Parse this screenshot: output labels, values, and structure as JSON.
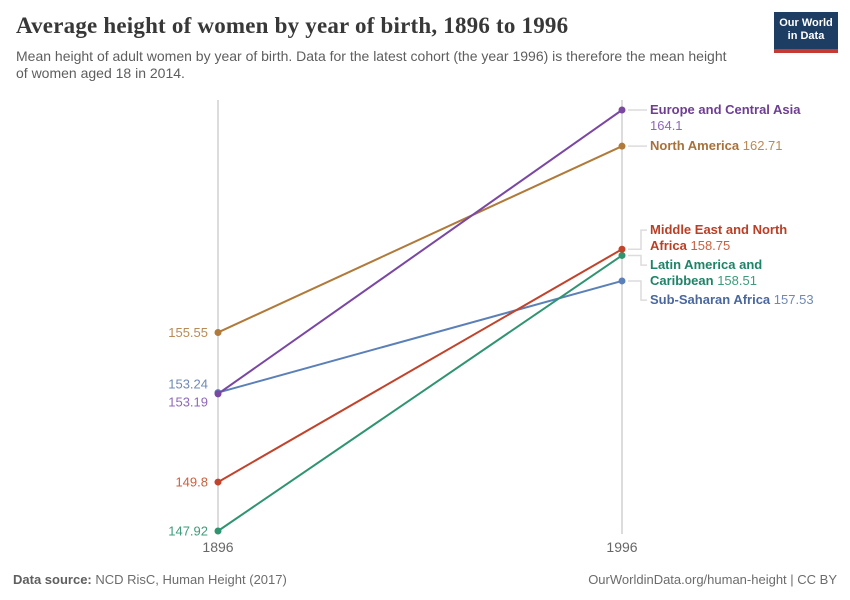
{
  "header": {
    "logo": {
      "line1": "Our World",
      "line2": "in Data",
      "bg_color": "#1d3d63",
      "stripe_color": "#c53a33"
    }
  },
  "chart_data": {
    "type": "line",
    "variant": "slope-chart",
    "title": "Average height of women by year of birth, 1896 to 1996",
    "subtitle": "Mean height of adult women by year of birth. Data for the latest cohort (the year 1996) is therefore the mean height of women aged 18 in 2014.",
    "x": [
      1896,
      1996
    ],
    "x_tick_labels": [
      "1896",
      "1996"
    ],
    "label_position": "right",
    "grid": false,
    "axis_color": "#d9d9d9",
    "tick_label_color": "#676767",
    "connector_color": "#dcdcdc",
    "series": [
      {
        "name": "Europe and Central Asia",
        "values": [
          153.19,
          164.1
        ],
        "color": "#7a47a3",
        "name_color": "#6d3e91",
        "value_color": "#9068b8"
      },
      {
        "name": "North America",
        "values": [
          155.55,
          162.71
        ],
        "color": "#b07a3a",
        "name_color": "#a8713a",
        "value_color": "#b98a55"
      },
      {
        "name": "Middle East and North Africa",
        "values": [
          149.8,
          158.75
        ],
        "color": "#c2432b",
        "name_color": "#bb3e25",
        "value_color": "#c9603f"
      },
      {
        "name": "Latin America and Caribbean",
        "values": [
          147.92,
          158.51
        ],
        "color": "#2f9470",
        "name_color": "#1d8468",
        "value_color": "#3f9b7b"
      },
      {
        "name": "Sub-Saharan Africa",
        "values": [
          153.24,
          157.53
        ],
        "color": "#5b80b8",
        "name_color": "#49679e",
        "value_color": "#6f89b6"
      }
    ]
  },
  "footer": {
    "source_bold": "Data source:",
    "source_rest": " NCD RisC, Human Height (2017)",
    "right": "OurWorldinData.org/human-height | CC BY"
  }
}
